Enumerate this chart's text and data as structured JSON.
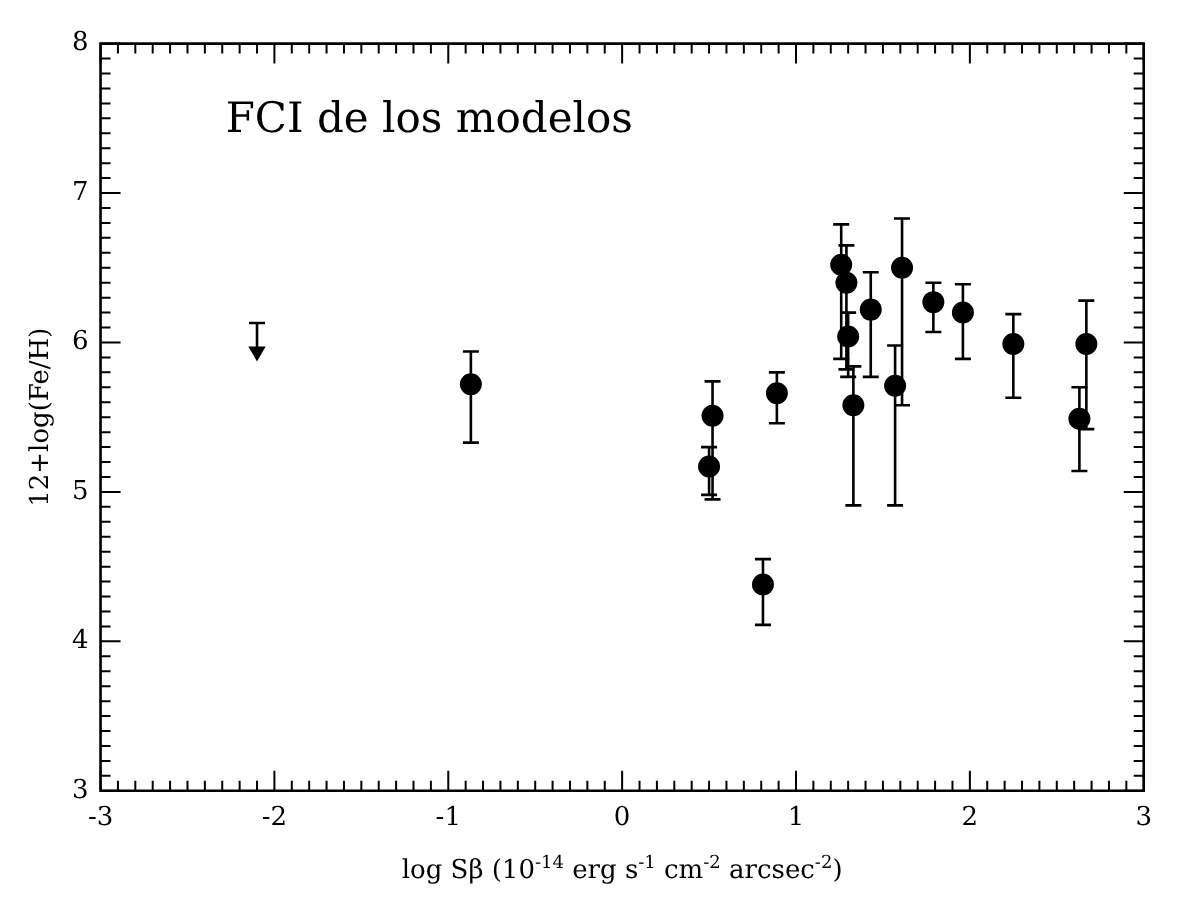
{
  "chart_data": {
    "type": "scatter",
    "title": "FCI de los modelos",
    "xlabel": "log Sβ (10$^{-14}$ erg s$^{-1}$ cm$^{-2}$ arcsec$^{-2}$)",
    "ylabel": "12+log(Fe/H)",
    "xlim": [
      -3,
      3
    ],
    "ylim": [
      3,
      8
    ],
    "xticks": [
      -3,
      {
        "value": -2.9,
        "label": null
      },
      {
        "value": -2.8,
        "label": null
      },
      {
        "value": -2.7,
        "label": null
      },
      {
        "value": -2.6,
        "label": null
      },
      {
        "value": -2.5,
        "label": null
      },
      {
        "value": -2.4,
        "label": null
      },
      {
        "value": -2.3,
        "label": null
      },
      {
        "value": -2.2,
        "label": null
      },
      {
        "value": -2.1,
        "label": null
      },
      -2,
      {
        "value": -1.9,
        "label": null
      },
      {
        "value": -1.8,
        "label": null
      },
      {
        "value": -1.7,
        "label": null
      },
      {
        "value": -1.6,
        "label": null
      },
      {
        "value": -1.5,
        "label": null
      },
      {
        "value": -1.4,
        "label": null
      },
      {
        "value": -1.3,
        "label": null
      },
      {
        "value": -1.2,
        "label": null
      },
      {
        "value": -1.1,
        "label": null
      },
      -1,
      {
        "value": -0.9,
        "label": null
      },
      {
        "value": -0.8,
        "label": null
      },
      {
        "value": -0.7,
        "label": null
      },
      {
        "value": -0.6,
        "label": null
      },
      {
        "value": -0.5,
        "label": null
      },
      {
        "value": -0.4,
        "label": null
      },
      {
        "value": -0.3,
        "label": null
      },
      {
        "value": -0.2,
        "label": null
      },
      {
        "value": -0.1,
        "label": null
      },
      0,
      {
        "value": 0.1,
        "label": null
      },
      {
        "value": 0.2,
        "label": null
      },
      {
        "value": 0.3,
        "label": null
      },
      {
        "value": 0.4,
        "label": null
      },
      {
        "value": 0.5,
        "label": null
      },
      {
        "value": 0.6,
        "label": null
      },
      {
        "value": 0.7,
        "label": null
      },
      {
        "value": 0.8,
        "label": null
      },
      {
        "value": 0.9,
        "label": null
      },
      1,
      {
        "value": 1.1,
        "label": null
      },
      {
        "value": 1.2,
        "label": null
      },
      {
        "value": 1.3,
        "label": null
      },
      {
        "value": 1.4,
        "label": null
      },
      {
        "value": 1.5,
        "label": null
      },
      {
        "value": 1.6,
        "label": null
      },
      {
        "value": 1.7,
        "label": null
      },
      {
        "value": 1.8,
        "label": null
      },
      {
        "value": 1.9,
        "label": null
      },
      2,
      {
        "value": 2.1,
        "label": null
      },
      {
        "value": 2.2,
        "label": null
      },
      {
        "value": 2.3,
        "label": null
      },
      {
        "value": 2.4,
        "label": null
      },
      {
        "value": 2.5,
        "label": null
      },
      {
        "value": 2.6,
        "label": null
      },
      {
        "value": 2.7,
        "label": null
      },
      {
        "value": 2.8,
        "label": null
      },
      {
        "value": 2.9,
        "label": null
      },
      3
    ],
    "yticks": [
      3,
      {
        "value": 3.1,
        "label": null
      },
      {
        "value": 3.2,
        "label": null
      },
      {
        "value": 3.3,
        "label": null
      },
      {
        "value": 3.4,
        "label": null
      },
      {
        "value": 3.5,
        "label": null
      },
      {
        "value": 3.6,
        "label": null
      },
      {
        "value": 3.7,
        "label": null
      },
      {
        "value": 3.8,
        "label": null
      },
      {
        "value": 3.9,
        "label": null
      },
      4,
      {
        "value": 4.1,
        "label": null
      },
      {
        "value": 4.2,
        "label": null
      },
      {
        "value": 4.3,
        "label": null
      },
      {
        "value": 4.4,
        "label": null
      },
      {
        "value": 4.5,
        "label": null
      },
      {
        "value": 4.6,
        "label": null
      },
      {
        "value": 4.7,
        "label": null
      },
      {
        "value": 4.8,
        "label": null
      },
      {
        "value": 4.9,
        "label": null
      },
      5,
      {
        "value": 5.1,
        "label": null
      },
      {
        "value": 5.2,
        "label": null
      },
      {
        "value": 5.3,
        "label": null
      },
      {
        "value": 5.4,
        "label": null
      },
      {
        "value": 5.5,
        "label": null
      },
      {
        "value": 5.6,
        "label": null
      },
      {
        "value": 5.7,
        "label": null
      },
      {
        "value": 5.8,
        "label": null
      },
      {
        "value": 5.9,
        "label": null
      },
      6,
      {
        "value": 6.1,
        "label": null
      },
      {
        "value": 6.2,
        "label": null
      },
      {
        "value": 6.3,
        "label": null
      },
      {
        "value": 6.4,
        "label": null
      },
      {
        "value": 6.5,
        "label": null
      },
      {
        "value": 6.6,
        "label": null
      },
      {
        "value": 6.7,
        "label": null
      },
      {
        "value": 6.8,
        "label": null
      },
      {
        "value": 6.9,
        "label": null
      },
      7,
      {
        "value": 7.1,
        "label": null
      },
      {
        "value": 7.2,
        "label": null
      },
      {
        "value": 7.3,
        "label": null
      },
      {
        "value": 7.4,
        "label": null
      },
      {
        "value": 7.5,
        "label": null
      },
      {
        "value": 7.6,
        "label": null
      },
      {
        "value": 7.7,
        "label": null
      },
      {
        "value": 7.8,
        "label": null
      },
      {
        "value": 7.9,
        "label": null
      },
      8
    ],
    "series": [
      {
        "color": "#000000",
        "marker": "circle",
        "x": [
          -0.87,
          0.5,
          0.52,
          0.81,
          0.89,
          1.26,
          1.29,
          1.3,
          1.33,
          1.43,
          1.57,
          1.61,
          1.79,
          1.96,
          2.25,
          2.63,
          2.67
        ],
        "values": [
          5.72,
          5.17,
          5.51,
          4.38,
          5.66,
          6.52,
          6.4,
          6.04,
          5.58,
          6.22,
          5.71,
          6.5,
          6.27,
          6.2,
          5.99,
          5.49,
          5.99
        ],
        "errors": [
          [
            5.33,
            5.94
          ],
          [
            4.98,
            5.3
          ],
          [
            4.95,
            5.74
          ],
          [
            4.11,
            4.55
          ],
          [
            5.46,
            5.8
          ],
          [
            5.89,
            6.79
          ],
          [
            5.82,
            6.65
          ],
          [
            5.77,
            6.2
          ],
          [
            4.91,
            5.84
          ],
          [
            5.77,
            6.47
          ],
          [
            4.91,
            5.98
          ],
          [
            5.58,
            6.83
          ],
          [
            6.07,
            6.4
          ],
          [
            5.89,
            6.39
          ],
          [
            5.63,
            6.19
          ],
          [
            5.14,
            5.7
          ],
          [
            5.42,
            6.28
          ]
        ]
      },
      {
        "color": "#000000",
        "marker": "triangle",
        "x": [
          -2.1
        ],
        "values": [
          5.94
        ],
        "errors": [
          [
            5.94,
            6.13
          ]
        ]
      }
    ]
  }
}
